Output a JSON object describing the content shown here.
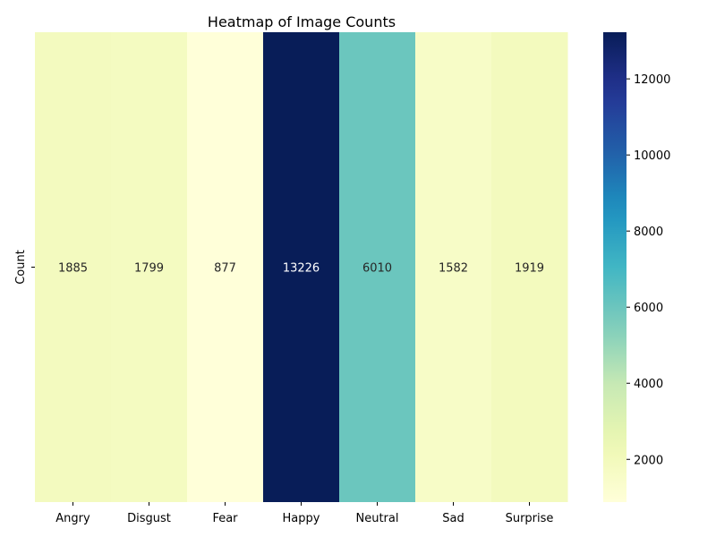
{
  "chart_data": {
    "type": "heatmap",
    "title": "Heatmap of Image Counts",
    "xlabel": "",
    "ylabel": "",
    "rows": [
      "Count"
    ],
    "categories": [
      "Angry",
      "Disgust",
      "Fear",
      "Happy",
      "Neutral",
      "Sad",
      "Surprise"
    ],
    "values": [
      [
        1885,
        1799,
        877,
        13226,
        6010,
        1582,
        1919
      ]
    ],
    "colormap": "YlGnBu",
    "colorbar": {
      "range": [
        877,
        13226
      ],
      "ticks": [
        2000,
        4000,
        6000,
        8000,
        10000,
        12000
      ]
    },
    "annotations": true
  }
}
